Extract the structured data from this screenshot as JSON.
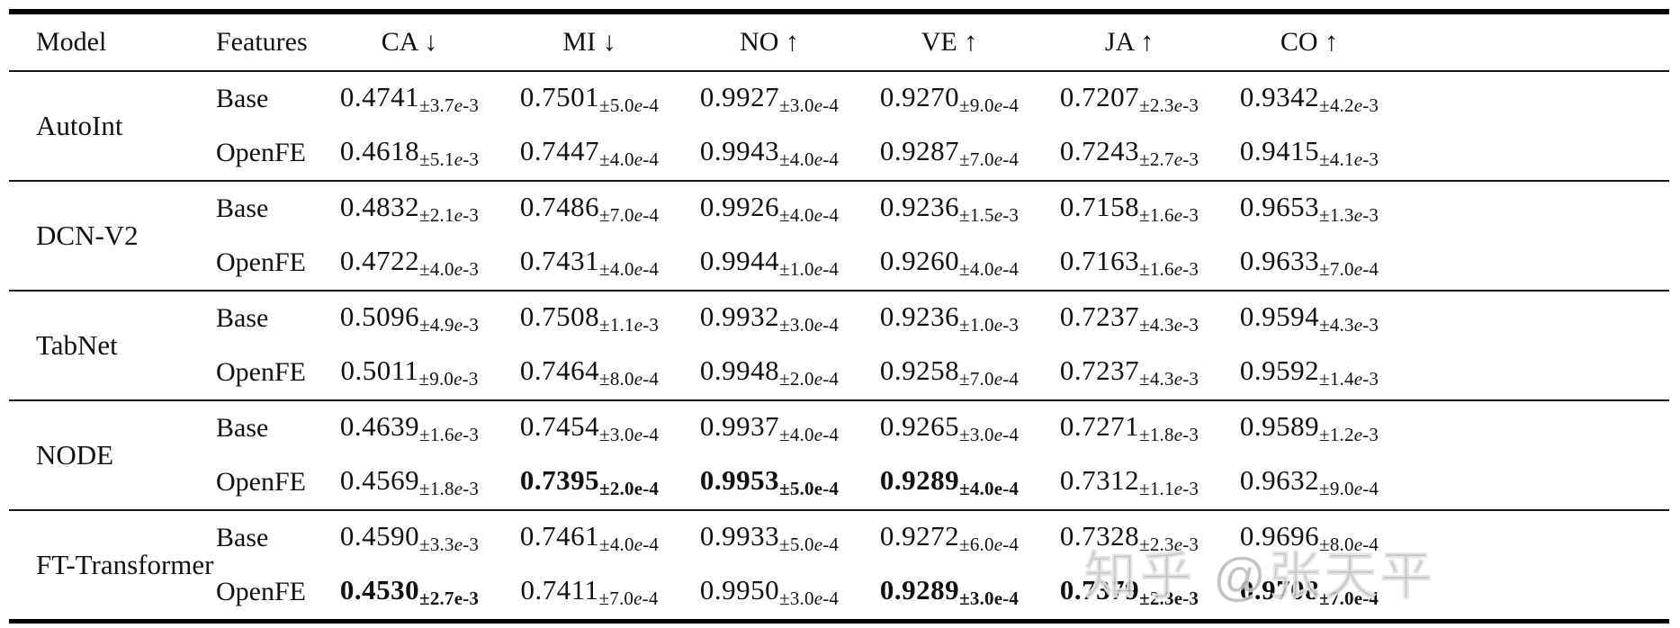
{
  "watermark": {
    "text": "知乎 @张天平"
  },
  "colors": {
    "text": "#111111",
    "rule": "#000000",
    "watermark": "#b9b9b9",
    "background": "#ffffff"
  },
  "table": {
    "headers": [
      "Model",
      "Features",
      "CA ↓",
      "MI ↓",
      "NO ↑",
      "VE ↑",
      "JA ↑",
      "CO ↑"
    ],
    "groups": [
      {
        "model": "AutoInt",
        "rows": [
          {
            "features": "Base",
            "values": [
              {
                "v": "0.4741",
                "e": "±3.7e-3"
              },
              {
                "v": "0.7501",
                "e": "±5.0e-4"
              },
              {
                "v": "0.9927",
                "e": "±3.0e-4"
              },
              {
                "v": "0.9270",
                "e": "±9.0e-4"
              },
              {
                "v": "0.7207",
                "e": "±2.3e-3"
              },
              {
                "v": "0.9342",
                "e": "±4.2e-3"
              }
            ]
          },
          {
            "features": "OpenFE",
            "values": [
              {
                "v": "0.4618",
                "e": "±5.1e-3"
              },
              {
                "v": "0.7447",
                "e": "±4.0e-4"
              },
              {
                "v": "0.9943",
                "e": "±4.0e-4"
              },
              {
                "v": "0.9287",
                "e": "±7.0e-4"
              },
              {
                "v": "0.7243",
                "e": "±2.7e-3"
              },
              {
                "v": "0.9415",
                "e": "±4.1e-3"
              }
            ]
          }
        ]
      },
      {
        "model": "DCN-V2",
        "rows": [
          {
            "features": "Base",
            "values": [
              {
                "v": "0.4832",
                "e": "±2.1e-3"
              },
              {
                "v": "0.7486",
                "e": "±7.0e-4"
              },
              {
                "v": "0.9926",
                "e": "±4.0e-4"
              },
              {
                "v": "0.9236",
                "e": "±1.5e-3"
              },
              {
                "v": "0.7158",
                "e": "±1.6e-3"
              },
              {
                "v": "0.9653",
                "e": "±1.3e-3"
              }
            ]
          },
          {
            "features": "OpenFE",
            "values": [
              {
                "v": "0.4722",
                "e": "±4.0e-3"
              },
              {
                "v": "0.7431",
                "e": "±4.0e-4"
              },
              {
                "v": "0.9944",
                "e": "±1.0e-4"
              },
              {
                "v": "0.9260",
                "e": "±4.0e-4"
              },
              {
                "v": "0.7163",
                "e": "±1.6e-3"
              },
              {
                "v": "0.9633",
                "e": "±7.0e-4"
              }
            ]
          }
        ]
      },
      {
        "model": "TabNet",
        "rows": [
          {
            "features": "Base",
            "values": [
              {
                "v": "0.5096",
                "e": "±4.9e-3"
              },
              {
                "v": "0.7508",
                "e": "±1.1e-3"
              },
              {
                "v": "0.9932",
                "e": "±3.0e-4"
              },
              {
                "v": "0.9236",
                "e": "±1.0e-3"
              },
              {
                "v": "0.7237",
                "e": "±4.3e-3"
              },
              {
                "v": "0.9594",
                "e": "±4.3e-3"
              }
            ]
          },
          {
            "features": "OpenFE",
            "values": [
              {
                "v": "0.5011",
                "e": "±9.0e-3"
              },
              {
                "v": "0.7464",
                "e": "±8.0e-4"
              },
              {
                "v": "0.9948",
                "e": "±2.0e-4"
              },
              {
                "v": "0.9258",
                "e": "±7.0e-4"
              },
              {
                "v": "0.7237",
                "e": "±4.3e-3"
              },
              {
                "v": "0.9592",
                "e": "±1.4e-3"
              }
            ]
          }
        ]
      },
      {
        "model": "NODE",
        "rows": [
          {
            "features": "Base",
            "values": [
              {
                "v": "0.4639",
                "e": "±1.6e-3"
              },
              {
                "v": "0.7454",
                "e": "±3.0e-4"
              },
              {
                "v": "0.9937",
                "e": "±4.0e-4"
              },
              {
                "v": "0.9265",
                "e": "±3.0e-4"
              },
              {
                "v": "0.7271",
                "e": "±1.8e-3"
              },
              {
                "v": "0.9589",
                "e": "±1.2e-3"
              }
            ]
          },
          {
            "features": "OpenFE",
            "values": [
              {
                "v": "0.4569",
                "e": "±1.8e-3"
              },
              {
                "v": "0.7395",
                "e": "±2.0e-4",
                "bold": true
              },
              {
                "v": "0.9953",
                "e": "±5.0e-4",
                "bold": true
              },
              {
                "v": "0.9289",
                "e": "±4.0e-4",
                "bold": true
              },
              {
                "v": "0.7312",
                "e": "±1.1e-3"
              },
              {
                "v": "0.9632",
                "e": "±9.0e-4"
              }
            ]
          }
        ]
      },
      {
        "model": "FT-Transformer",
        "rows": [
          {
            "features": "Base",
            "values": [
              {
                "v": "0.4590",
                "e": "±3.3e-3"
              },
              {
                "v": "0.7461",
                "e": "±4.0e-4"
              },
              {
                "v": "0.9933",
                "e": "±5.0e-4"
              },
              {
                "v": "0.9272",
                "e": "±6.0e-4"
              },
              {
                "v": "0.7328",
                "e": "±2.3e-3"
              },
              {
                "v": "0.9696",
                "e": "±8.0e-4"
              }
            ]
          },
          {
            "features": "OpenFE",
            "values": [
              {
                "v": "0.4530",
                "e": "±2.7e-3",
                "bold": true
              },
              {
                "v": "0.7411",
                "e": "±7.0e-4"
              },
              {
                "v": "0.9950",
                "e": "±3.0e-4"
              },
              {
                "v": "0.9289",
                "e": "±3.0e-4",
                "bold": true
              },
              {
                "v": "0.7379",
                "e": "±2.3e-3",
                "bold": true
              },
              {
                "v": "0.9708",
                "e": "±7.0e-4",
                "bold": true
              }
            ]
          }
        ]
      }
    ]
  }
}
